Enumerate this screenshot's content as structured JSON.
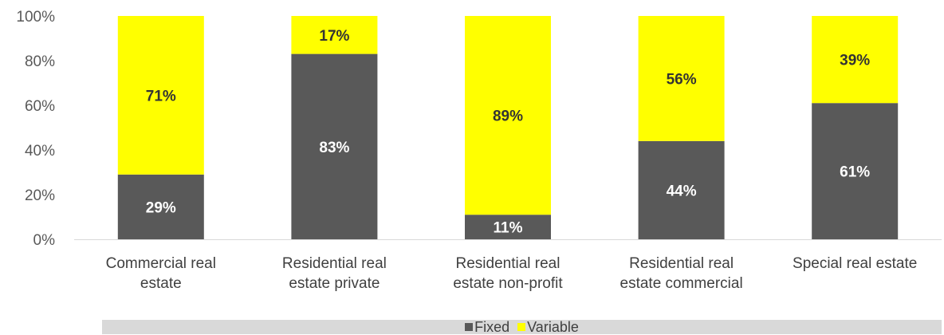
{
  "chart_data": {
    "type": "bar",
    "stacked": true,
    "categories": [
      [
        "Commercial real",
        "estate"
      ],
      [
        "Residential real",
        "estate private"
      ],
      [
        "Residential real",
        "estate non-profit"
      ],
      [
        "Residential real",
        "estate commercial"
      ],
      [
        "Special real estate"
      ]
    ],
    "series": [
      {
        "name": "Fixed",
        "color": "#595959",
        "label_color": "#ffffff",
        "values": [
          29,
          83,
          11,
          44,
          61
        ],
        "labels": [
          "29%",
          "83%",
          "11%",
          "44%",
          "61%"
        ]
      },
      {
        "name": "Variable",
        "color": "#ffff00",
        "label_color": "#333333",
        "values": [
          71,
          17,
          89,
          56,
          39
        ],
        "labels": [
          "71%",
          "17%",
          "89%",
          "56%",
          "39%"
        ]
      }
    ],
    "yticks": [
      "0%",
      "20%",
      "40%",
      "60%",
      "80%",
      "100%"
    ],
    "ylim": [
      0,
      100
    ],
    "grid": false,
    "legend_position": "bottom"
  }
}
